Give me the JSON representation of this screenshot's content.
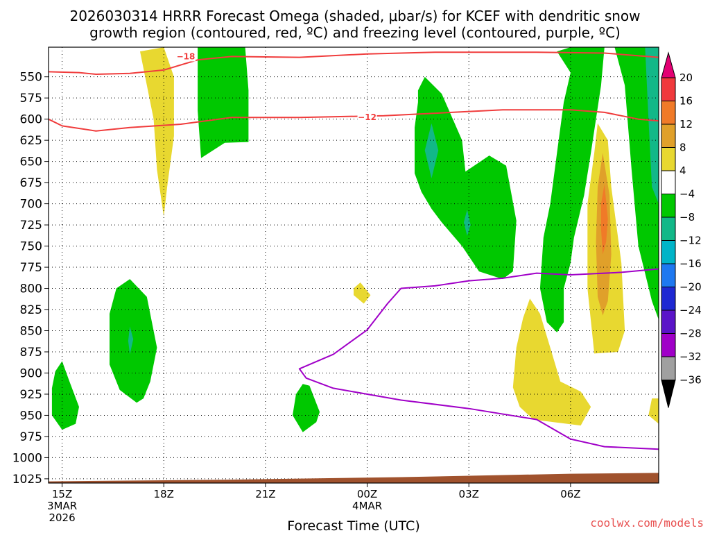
{
  "title": {
    "line1": "2026030314 HRRR Forecast Omega (shaded, μbar/s) for KCEF with dendritic snow",
    "line2": "growth region (contoured, red, ºC) and freezing level (contoured, purple, ºC)"
  },
  "chart_data": {
    "type": "time-height cross-section",
    "xlabel": "Forecast Time (UTC)",
    "ylabel": "",
    "ylim": [
      1030,
      515
    ],
    "xlim": [
      14.6,
      32.6
    ],
    "y_ticks": [
      550,
      575,
      600,
      625,
      650,
      675,
      700,
      725,
      750,
      775,
      800,
      825,
      850,
      875,
      900,
      925,
      950,
      975,
      1000,
      1025
    ],
    "x_ticks": [
      {
        "t": 15,
        "lines": [
          "15Z",
          "3MAR",
          "2026"
        ]
      },
      {
        "t": 18,
        "lines": [
          "18Z"
        ]
      },
      {
        "t": 21,
        "lines": [
          "21Z"
        ]
      },
      {
        "t": 24,
        "lines": [
          "00Z",
          "4MAR"
        ]
      },
      {
        "t": 27,
        "lines": [
          "03Z"
        ]
      },
      {
        "t": 30,
        "lines": [
          "06Z"
        ]
      }
    ],
    "grid": "dotted",
    "colorbar": {
      "labels": [
        "20",
        "16",
        "12",
        "8",
        "4",
        "-4",
        "-8",
        "-12",
        "-16",
        "-20",
        "-24",
        "-28",
        "-32",
        "-36"
      ],
      "colors": [
        "#e30073",
        "#f0393c",
        "#f07a28",
        "#e0a02a",
        "#e8d830",
        "#ffffff",
        "#00c800",
        "#12b888",
        "#00b4c8",
        "#1e78f0",
        "#1e28d2",
        "#5a14c8",
        "#a000c8",
        "#a0a0a0",
        "#000000"
      ]
    },
    "fill_colors": {
      "green": "#00c800",
      "teal": "#12b888",
      "yellow": "#e8d830",
      "orange": "#e0a02a",
      "deep_orange": "#f07a28"
    },
    "isotherm_labels": [
      {
        "value": "-18",
        "t": 18.65,
        "p": 526
      },
      {
        "value": "-12",
        "t": 24.0,
        "p": 598
      }
    ],
    "series": [
      {
        "name": "-18C isotherm (upper)",
        "color": "#f03c3c",
        "points": [
          [
            14.6,
            544
          ],
          [
            15.5,
            545
          ],
          [
            16.0,
            547
          ],
          [
            17.0,
            546
          ],
          [
            18.0,
            542
          ],
          [
            19.0,
            530
          ],
          [
            20.0,
            526
          ],
          [
            22.0,
            527
          ],
          [
            24.0,
            523
          ],
          [
            26.0,
            521
          ],
          [
            29.0,
            521
          ],
          [
            31.0,
            522
          ],
          [
            32.6,
            527
          ]
        ]
      },
      {
        "name": "-12C isotherm",
        "color": "#f03c3c",
        "points": [
          [
            14.6,
            600
          ],
          [
            15.0,
            608
          ],
          [
            16.0,
            614
          ],
          [
            17.0,
            610
          ],
          [
            18.5,
            606
          ],
          [
            20.0,
            598
          ],
          [
            22.0,
            598
          ],
          [
            24.5,
            596
          ],
          [
            26.5,
            592
          ],
          [
            28.0,
            589
          ],
          [
            30.0,
            589
          ],
          [
            31.0,
            592
          ],
          [
            32.0,
            600
          ],
          [
            32.6,
            602
          ]
        ]
      },
      {
        "name": "Freezing level (0C)",
        "color": "#a000c8",
        "points": [
          [
            32.6,
            777
          ],
          [
            31.5,
            781
          ],
          [
            30.0,
            784
          ],
          [
            29.0,
            782
          ],
          [
            28.0,
            788
          ],
          [
            27.0,
            791
          ],
          [
            26.0,
            797
          ],
          [
            25.0,
            800
          ],
          [
            24.6,
            818
          ],
          [
            24.0,
            849
          ],
          [
            23.0,
            878
          ],
          [
            22.0,
            895
          ],
          [
            22.2,
            906
          ],
          [
            23.0,
            918
          ],
          [
            25.0,
            932
          ],
          [
            27.0,
            942
          ],
          [
            29.0,
            955
          ],
          [
            30.0,
            978
          ],
          [
            31.0,
            987
          ],
          [
            32.6,
            990
          ]
        ]
      }
    ],
    "shaded_regions": [
      {
        "class": "green",
        "points": [
          [
            19.0,
            515
          ],
          [
            20.4,
            515
          ],
          [
            20.5,
            566
          ],
          [
            20.5,
            627
          ],
          [
            19.8,
            628
          ],
          [
            19.1,
            646
          ],
          [
            19.0,
            590
          ],
          [
            19.0,
            530
          ]
        ]
      },
      {
        "class": "green",
        "points": [
          [
            25.5,
            566
          ],
          [
            25.7,
            550
          ],
          [
            26.2,
            570
          ],
          [
            26.8,
            625
          ],
          [
            26.9,
            662
          ],
          [
            27.6,
            643
          ],
          [
            28.1,
            655
          ],
          [
            28.4,
            720
          ],
          [
            28.3,
            780
          ],
          [
            28.0,
            789
          ],
          [
            27.3,
            780
          ],
          [
            26.8,
            750
          ],
          [
            26.2,
            722
          ],
          [
            25.9,
            706
          ],
          [
            25.6,
            686
          ],
          [
            25.4,
            664
          ],
          [
            25.4,
            610
          ],
          [
            25.5,
            580
          ]
        ]
      },
      {
        "class": "green",
        "points": [
          [
            30.0,
            515
          ],
          [
            31.0,
            515
          ],
          [
            30.9,
            560
          ],
          [
            30.6,
            640
          ],
          [
            30.4,
            690
          ],
          [
            30.1,
            740
          ],
          [
            30.0,
            770
          ],
          [
            29.8,
            800
          ],
          [
            29.8,
            840
          ],
          [
            29.6,
            852
          ],
          [
            29.3,
            840
          ],
          [
            29.1,
            800
          ],
          [
            29.2,
            740
          ],
          [
            29.4,
            700
          ],
          [
            29.6,
            640
          ],
          [
            29.8,
            580
          ],
          [
            30.0,
            545
          ],
          [
            29.6,
            520
          ]
        ]
      },
      {
        "class": "green",
        "points": [
          [
            31.3,
            515
          ],
          [
            32.6,
            515
          ],
          [
            32.6,
            837
          ],
          [
            32.4,
            815
          ],
          [
            32.0,
            750
          ],
          [
            31.8,
            660
          ],
          [
            31.6,
            560
          ]
        ]
      },
      {
        "class": "green",
        "points": [
          [
            17.0,
            789
          ],
          [
            17.5,
            810
          ],
          [
            17.8,
            870
          ],
          [
            17.6,
            910
          ],
          [
            17.4,
            930
          ],
          [
            17.2,
            935
          ],
          [
            16.7,
            920
          ],
          [
            16.4,
            890
          ],
          [
            16.4,
            830
          ],
          [
            16.6,
            800
          ]
        ]
      },
      {
        "class": "green",
        "points": [
          [
            15.0,
            886
          ],
          [
            15.2,
            908
          ],
          [
            15.5,
            940
          ],
          [
            15.4,
            960
          ],
          [
            15.0,
            967
          ],
          [
            14.7,
            950
          ],
          [
            14.7,
            918
          ],
          [
            14.8,
            898
          ]
        ]
      },
      {
        "class": "green",
        "points": [
          [
            22.1,
            913
          ],
          [
            22.3,
            915
          ],
          [
            22.6,
            946
          ],
          [
            22.5,
            958
          ],
          [
            22.1,
            970
          ],
          [
            21.8,
            950
          ],
          [
            21.9,
            925
          ]
        ]
      },
      {
        "class": "teal",
        "points": [
          [
            25.9,
            605
          ],
          [
            26.1,
            637
          ],
          [
            25.9,
            670
          ],
          [
            25.7,
            637
          ]
        ]
      },
      {
        "class": "teal",
        "points": [
          [
            26.95,
            707
          ],
          [
            27.05,
            725
          ],
          [
            26.95,
            738
          ],
          [
            26.85,
            722
          ]
        ]
      },
      {
        "class": "teal",
        "points": [
          [
            17.0,
            845
          ],
          [
            17.1,
            860
          ],
          [
            17.0,
            878
          ],
          [
            16.95,
            862
          ]
        ]
      },
      {
        "class": "teal",
        "points": [
          [
            32.2,
            515
          ],
          [
            32.6,
            515
          ],
          [
            32.6,
            700
          ],
          [
            32.4,
            680
          ],
          [
            32.3,
            600
          ]
        ]
      },
      {
        "class": "yellow",
        "points": [
          [
            18.0,
            515
          ],
          [
            18.3,
            550
          ],
          [
            18.3,
            620
          ],
          [
            18.1,
            680
          ],
          [
            18.0,
            715
          ],
          [
            17.8,
            660
          ],
          [
            17.7,
            600
          ],
          [
            17.5,
            560
          ],
          [
            17.3,
            520
          ]
        ]
      },
      {
        "class": "yellow",
        "points": [
          [
            30.8,
            605
          ],
          [
            31.1,
            625
          ],
          [
            31.2,
            680
          ],
          [
            31.5,
            770
          ],
          [
            31.6,
            850
          ],
          [
            31.4,
            875
          ],
          [
            30.7,
            877
          ],
          [
            30.5,
            800
          ],
          [
            30.5,
            700
          ],
          [
            30.7,
            640
          ]
        ]
      },
      {
        "class": "yellow",
        "points": [
          [
            28.8,
            812
          ],
          [
            29.1,
            830
          ],
          [
            29.4,
            870
          ],
          [
            29.7,
            910
          ],
          [
            30.3,
            922
          ],
          [
            30.6,
            940
          ],
          [
            30.3,
            962
          ],
          [
            29.5,
            958
          ],
          [
            28.9,
            955
          ],
          [
            28.5,
            940
          ],
          [
            28.3,
            917
          ],
          [
            28.4,
            870
          ],
          [
            28.6,
            835
          ]
        ]
      },
      {
        "class": "yellow",
        "points": [
          [
            23.8,
            793
          ],
          [
            24.1,
            808
          ],
          [
            23.9,
            818
          ],
          [
            23.6,
            808
          ],
          [
            23.6,
            800
          ]
        ]
      },
      {
        "class": "yellow",
        "points": [
          [
            32.6,
            930
          ],
          [
            32.6,
            960
          ],
          [
            32.3,
            950
          ],
          [
            32.4,
            930
          ]
        ]
      },
      {
        "class": "orange",
        "points": [
          [
            30.95,
            640
          ],
          [
            31.15,
            690
          ],
          [
            31.2,
            760
          ],
          [
            31.1,
            815
          ],
          [
            30.95,
            832
          ],
          [
            30.8,
            810
          ],
          [
            30.75,
            745
          ],
          [
            30.8,
            680
          ]
        ]
      },
      {
        "class": "deep_orange",
        "points": [
          [
            31.0,
            677
          ],
          [
            31.1,
            718
          ],
          [
            31.05,
            745
          ],
          [
            30.95,
            760
          ],
          [
            30.9,
            730
          ],
          [
            30.9,
            700
          ]
        ]
      }
    ],
    "terrain": {
      "color": "#a0522d",
      "points": [
        [
          14.6,
          1028
        ],
        [
          20.0,
          1026
        ],
        [
          25.0,
          1023
        ],
        [
          30.0,
          1019
        ],
        [
          32.6,
          1018
        ]
      ]
    }
  },
  "credit": {
    "text": "coolwx.com/models",
    "color": "#e85050"
  }
}
